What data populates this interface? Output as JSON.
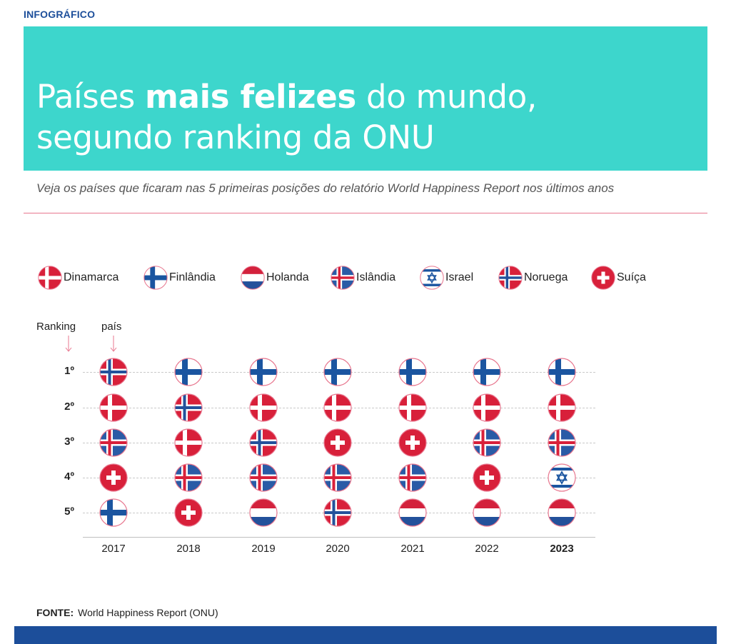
{
  "kicker": "INFOGRÁFICO",
  "title": {
    "part1": "Países ",
    "bold": "mais felizes",
    "part2": " do mundo,",
    "line2": "segundo ranking da ONU"
  },
  "subtitle": "Veja os países que ficaram nas 5 primeiras posições do relatório World Happiness Report nos últimos anos",
  "legend": [
    {
      "key": "dk",
      "label": "Dinamarca"
    },
    {
      "key": "fi",
      "label": "Finlândia"
    },
    {
      "key": "nl",
      "label": "Holanda"
    },
    {
      "key": "is",
      "label": "Islândia"
    },
    {
      "key": "il",
      "label": "Israel"
    },
    {
      "key": "no",
      "label": "Noruega"
    },
    {
      "key": "ch",
      "label": "Suíça"
    }
  ],
  "labels": {
    "ranking": "Ranking",
    "country": "país"
  },
  "source": {
    "label": "FONTE:",
    "text": "World Happiness Report (ONU)"
  },
  "colors": {
    "banner": "#3dd6cc",
    "kicker": "#1c4e9a",
    "accent_pink": "#e8778f",
    "footer": "#1c4e9a"
  },
  "chart_data": {
    "type": "table",
    "rank_labels": [
      "1º",
      "2º",
      "3º",
      "4º",
      "5º"
    ],
    "years": [
      "2017",
      "2018",
      "2019",
      "2020",
      "2021",
      "2022",
      "2023"
    ],
    "highlight_year": "2023",
    "rankings": {
      "2017": [
        "Noruega",
        "Dinamarca",
        "Islândia",
        "Suíça",
        "Finlândia"
      ],
      "2018": [
        "Finlândia",
        "Noruega",
        "Dinamarca",
        "Islândia",
        "Suíça"
      ],
      "2019": [
        "Finlândia",
        "Dinamarca",
        "Noruega",
        "Islândia",
        "Holanda"
      ],
      "2020": [
        "Finlândia",
        "Dinamarca",
        "Suíça",
        "Islândia",
        "Noruega"
      ],
      "2021": [
        "Finlândia",
        "Dinamarca",
        "Suíça",
        "Islândia",
        "Holanda"
      ],
      "2022": [
        "Finlândia",
        "Dinamarca",
        "Islândia",
        "Suíça",
        "Holanda"
      ],
      "2023": [
        "Finlândia",
        "Dinamarca",
        "Islândia",
        "Israel",
        "Holanda"
      ]
    }
  }
}
